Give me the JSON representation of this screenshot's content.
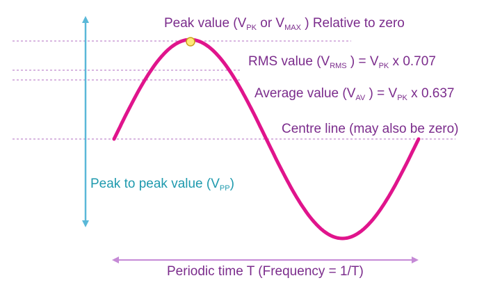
{
  "colors": {
    "wave": "#e0148c",
    "purple_text": "#7b2c8c",
    "guide_lines": "#b06cc0",
    "time_arrow": "#c58ad6",
    "teal": "#1f9aae",
    "vpp_arrow": "#5ab8d8",
    "peak_dot_fill": "#ffe97a",
    "peak_dot_stroke": "#c9a21b"
  },
  "labels": {
    "peak": {
      "pre": "Peak value (V",
      "sub1": "PK",
      "mid": " or V",
      "sub2": "MAX",
      "post": " ) Relative to zero"
    },
    "rms": {
      "pre": "RMS value (V",
      "sub1": "RMS",
      "mid": " ) = V",
      "sub2": "PK",
      "post": " x 0.707"
    },
    "average": {
      "pre": "Average value (V",
      "sub1": "AV",
      "mid": " ) = V",
      "sub2": "PK",
      "post": " x 0.637"
    },
    "centre": "Centre line (may also be zero)",
    "peak_to_peak": {
      "pre": "Peak to peak value (V",
      "sub": "PP",
      "post": ")"
    },
    "periodic": "Periodic time T (Frequency = 1/T)"
  }
}
